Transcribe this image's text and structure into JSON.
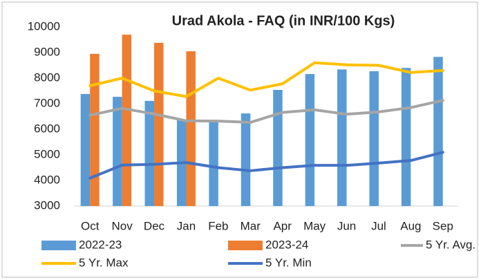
{
  "chart_data": {
    "type": "bar_line",
    "title": "Urad Akola - FAQ (in INR/100 Kgs)",
    "categories": [
      "Oct",
      "Nov",
      "Dec",
      "Jan",
      "Feb",
      "Mar",
      "Apr",
      "May",
      "Jun",
      "Jul",
      "Aug",
      "Sep"
    ],
    "series": [
      {
        "name": "2022-23",
        "kind": "bar",
        "color": "#5b9bd5",
        "values": [
          7380,
          7270,
          7110,
          6350,
          6300,
          6620,
          7540,
          8160,
          8340,
          8270,
          8400,
          8830
        ]
      },
      {
        "name": "2023-24",
        "kind": "bar",
        "color": "#ed7d31",
        "values": [
          8950,
          9700,
          9380,
          9050,
          null,
          null,
          null,
          null,
          null,
          null,
          null,
          null
        ]
      },
      {
        "name": "5 Yr. Avg.",
        "kind": "line",
        "color": "#a5a5a5",
        "values": [
          6550,
          6820,
          6600,
          6330,
          6320,
          6270,
          6660,
          6760,
          6590,
          6680,
          6850,
          7130
        ]
      },
      {
        "name": "5 Yr. Max",
        "kind": "line",
        "color": "#ffc000",
        "values": [
          7700,
          8000,
          7500,
          7280,
          8000,
          7530,
          7780,
          8600,
          8520,
          8500,
          8220,
          8300
        ]
      },
      {
        "name": "5 Yr. Min",
        "kind": "line",
        "color": "#4472c4",
        "values": [
          4090,
          4600,
          4630,
          4700,
          4500,
          4380,
          4500,
          4590,
          4590,
          4680,
          4780,
          5100
        ]
      }
    ],
    "ylim": [
      3000,
      10000
    ],
    "yticks": [
      3000,
      4000,
      5000,
      6000,
      7000,
      8000,
      9000,
      10000
    ],
    "grid": false,
    "legend": "bottom"
  }
}
